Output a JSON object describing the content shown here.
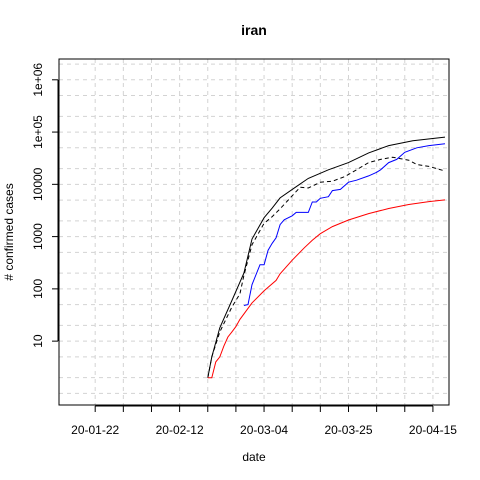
{
  "chart_data": {
    "type": "line",
    "title": "iran",
    "xlabel": "date",
    "ylabel": "# confirmed cases",
    "x_scale": "date",
    "y_scale": "log",
    "xlim": [
      "2020-01-13",
      "2020-04-19"
    ],
    "ylim": [
      0.6,
      2500000
    ],
    "grid": true,
    "legend": "none",
    "x_ticks": [
      "2020-01-22",
      "2020-02-12",
      "2020-03-04",
      "2020-03-25",
      "2020-04-15"
    ],
    "x_tick_labels": [
      "20-01-22",
      "20-02-12",
      "20-03-04",
      "20-03-25",
      "20-04-15"
    ],
    "y_ticks": [
      10,
      100,
      1000,
      10000,
      100000,
      1000000
    ],
    "y_tick_labels": [
      "10",
      "100",
      "1000",
      "10000",
      "1e+05",
      "1e+06"
    ],
    "series": [
      {
        "color": "#000000",
        "dash": "solid",
        "points": [
          [
            "2020-02-19",
            2
          ],
          [
            "2020-02-20",
            5
          ],
          [
            "2020-02-22",
            18
          ],
          [
            "2020-02-25",
            60
          ],
          [
            "2020-02-28",
            200
          ],
          [
            "2020-03-01",
            900
          ],
          [
            "2020-03-04",
            2300
          ],
          [
            "2020-03-06",
            3500
          ],
          [
            "2020-03-08",
            5500
          ],
          [
            "2020-03-12",
            9000
          ],
          [
            "2020-03-15",
            13000
          ],
          [
            "2020-03-20",
            19000
          ],
          [
            "2020-03-25",
            26000
          ],
          [
            "2020-03-30",
            40000
          ],
          [
            "2020-04-04",
            55000
          ],
          [
            "2020-04-10",
            68000
          ],
          [
            "2020-04-18",
            80000
          ]
        ]
      },
      {
        "color": "#000000",
        "dash": "dashed",
        "points": [
          [
            "2020-02-19",
            2
          ],
          [
            "2020-02-20",
            5
          ],
          [
            "2020-02-22",
            15
          ],
          [
            "2020-02-25",
            45
          ],
          [
            "2020-02-27",
            80
          ],
          [
            "2020-02-28",
            180
          ],
          [
            "2020-03-01",
            700
          ],
          [
            "2020-03-04",
            1800
          ],
          [
            "2020-03-06",
            2400
          ],
          [
            "2020-03-08",
            3400
          ],
          [
            "2020-03-10",
            5000
          ],
          [
            "2020-03-13",
            8800
          ],
          [
            "2020-03-15",
            8500
          ],
          [
            "2020-03-18",
            11000
          ],
          [
            "2020-03-21",
            11500
          ],
          [
            "2020-03-24",
            14000
          ],
          [
            "2020-03-27",
            19000
          ],
          [
            "2020-03-30",
            26000
          ],
          [
            "2020-04-02",
            30000
          ],
          [
            "2020-04-05",
            33000
          ],
          [
            "2020-04-07",
            31000
          ],
          [
            "2020-04-09",
            29000
          ],
          [
            "2020-04-11",
            24000
          ],
          [
            "2020-04-14",
            22000
          ],
          [
            "2020-04-18",
            18000
          ]
        ]
      },
      {
        "color": "#0000ff",
        "dash": "solid",
        "points": [
          [
            "2020-02-28",
            48
          ],
          [
            "2020-02-29",
            50
          ],
          [
            "2020-03-01",
            120
          ],
          [
            "2020-03-03",
            290
          ],
          [
            "2020-03-04",
            290
          ],
          [
            "2020-03-05",
            550
          ],
          [
            "2020-03-06",
            740
          ],
          [
            "2020-03-07",
            950
          ],
          [
            "2020-03-08",
            1700
          ],
          [
            "2020-03-09",
            2100
          ],
          [
            "2020-03-11",
            2500
          ],
          [
            "2020-03-12",
            2900
          ],
          [
            "2020-03-15",
            2900
          ],
          [
            "2020-03-16",
            4600
          ],
          [
            "2020-03-17",
            4600
          ],
          [
            "2020-03-18",
            5400
          ],
          [
            "2020-03-20",
            5800
          ],
          [
            "2020-03-21",
            7600
          ],
          [
            "2020-03-23",
            8000
          ],
          [
            "2020-03-25",
            11000
          ],
          [
            "2020-03-27",
            12000
          ],
          [
            "2020-03-30",
            14500
          ],
          [
            "2020-04-01",
            17000
          ],
          [
            "2020-04-02",
            19000
          ],
          [
            "2020-04-04",
            26000
          ],
          [
            "2020-04-06",
            30000
          ],
          [
            "2020-04-08",
            41000
          ],
          [
            "2020-04-11",
            50000
          ],
          [
            "2020-04-14",
            55000
          ],
          [
            "2020-04-18",
            60000
          ]
        ]
      },
      {
        "color": "#ff0000",
        "dash": "solid",
        "points": [
          [
            "2020-02-19",
            2
          ],
          [
            "2020-02-20",
            2
          ],
          [
            "2020-02-21",
            4
          ],
          [
            "2020-02-22",
            5
          ],
          [
            "2020-02-23",
            8
          ],
          [
            "2020-02-24",
            12
          ],
          [
            "2020-02-25",
            15
          ],
          [
            "2020-02-26",
            19
          ],
          [
            "2020-02-27",
            26
          ],
          [
            "2020-03-01",
            54
          ],
          [
            "2020-03-04",
            92
          ],
          [
            "2020-03-07",
            145
          ],
          [
            "2020-03-08",
            194
          ],
          [
            "2020-03-11",
            354
          ],
          [
            "2020-03-14",
            611
          ],
          [
            "2020-03-16",
            853
          ],
          [
            "2020-03-18",
            1135
          ],
          [
            "2020-03-21",
            1556
          ],
          [
            "2020-03-25",
            2077
          ],
          [
            "2020-03-30",
            2757
          ],
          [
            "2020-04-04",
            3452
          ],
          [
            "2020-04-09",
            4110
          ],
          [
            "2020-04-14",
            4683
          ],
          [
            "2020-04-18",
            5031
          ]
        ]
      }
    ]
  }
}
